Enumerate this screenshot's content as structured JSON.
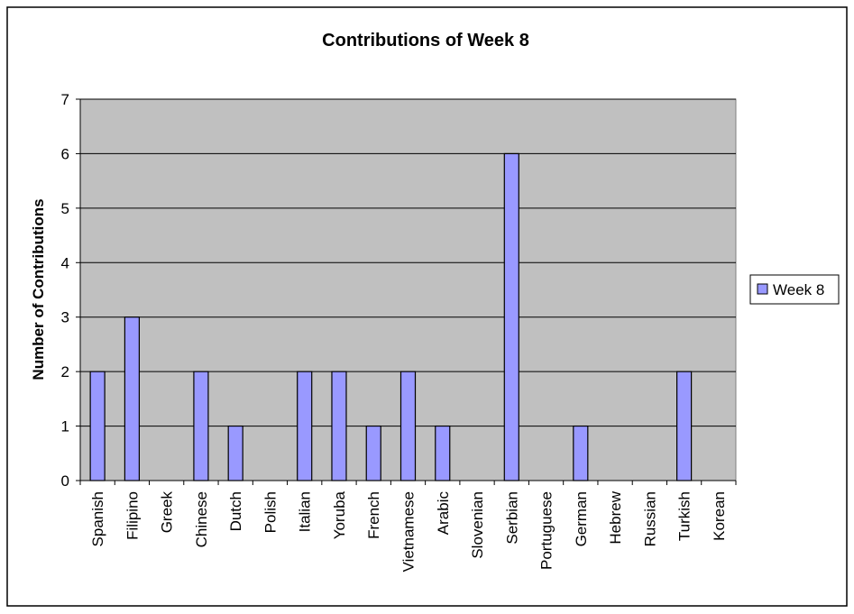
{
  "chart_data": {
    "type": "bar",
    "title": "Contributions of Week 8",
    "xlabel": "",
    "ylabel": "Number of Contributions",
    "categories": [
      "Spanish",
      "Filipino",
      "Greek",
      "Chinese",
      "Dutch",
      "Polish",
      "Italian",
      "Yoruba",
      "French",
      "Vietnamese",
      "Arabic",
      "Slovenian",
      "Serbian",
      "Portuguese",
      "German",
      "Hebrew",
      "Russian",
      "Turkish",
      "Korean"
    ],
    "series": [
      {
        "name": "Week 8",
        "values": [
          2,
          3,
          0,
          2,
          1,
          0,
          2,
          2,
          1,
          2,
          1,
          0,
          6,
          0,
          1,
          0,
          0,
          2,
          0
        ]
      }
    ],
    "ylim": [
      0,
      7
    ],
    "yticks": [
      "0",
      "1",
      "2",
      "3",
      "4",
      "5",
      "6",
      "7"
    ],
    "grid": true,
    "legend_position": "right",
    "colors": {
      "bar": "#9999ff",
      "plot_background": "#c0c0c0",
      "border": "#000000"
    }
  }
}
